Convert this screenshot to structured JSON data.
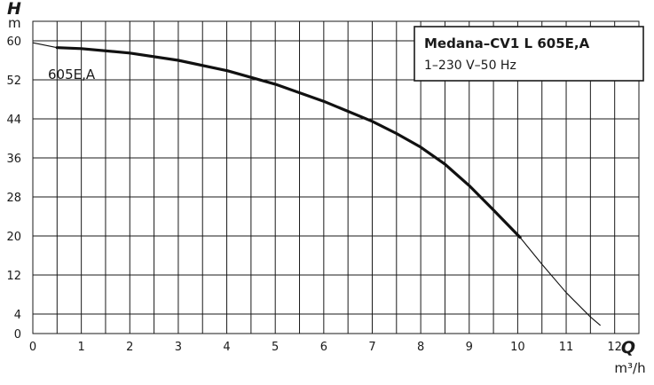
{
  "chart_data": {
    "type": "line",
    "x_axis": {
      "letter": "Q",
      "unit": "m³/h",
      "range": [
        0,
        12.5
      ],
      "ticks": [
        0,
        1,
        2,
        3,
        4,
        5,
        6,
        7,
        8,
        9,
        10,
        11,
        12
      ],
      "tick_labels": [
        "0",
        "1",
        "2",
        "3",
        "4",
        "5",
        "6",
        "7",
        "8",
        "9",
        "10",
        "11",
        "12"
      ],
      "grid_step": 0.5
    },
    "y_axis": {
      "letter": "H",
      "unit": "m",
      "range": [
        0,
        64
      ],
      "ticks": [
        0,
        4,
        12,
        20,
        28,
        36,
        44,
        52,
        60
      ],
      "tick_labels": [
        "0",
        "4",
        "12",
        "20",
        "28",
        "36",
        "44",
        "52",
        "60"
      ],
      "grid_values": [
        4,
        12,
        20,
        28,
        36,
        44,
        52,
        60
      ]
    },
    "grid": true,
    "legend": {
      "position": "top-right",
      "title": "Medana–CV1 L 605E,A",
      "subtitle": "1–230 V–50 Hz"
    },
    "series": [
      {
        "name": "605E,A",
        "segments": [
          {
            "style": "thick",
            "x": [
              0.5,
              1,
              2,
              3,
              4,
              5,
              6,
              7,
              7.5,
              8,
              8.5,
              9,
              9.5,
              10.05
            ],
            "y": [
              58.6,
              58.4,
              57.5,
              56.0,
              53.9,
              51.1,
              47.6,
              43.5,
              41.0,
              38.2,
              34.7,
              30.3,
              25.3,
              19.7
            ]
          },
          {
            "style": "thin",
            "x": [
              10.05,
              10.5,
              11,
              11.5,
              11.7
            ],
            "y": [
              19.7,
              14.2,
              8.4,
              3.4,
              1.7
            ]
          },
          {
            "style": "thin",
            "x": [
              0,
              0.5
            ],
            "y": [
              59.6,
              58.6
            ]
          }
        ]
      }
    ]
  }
}
